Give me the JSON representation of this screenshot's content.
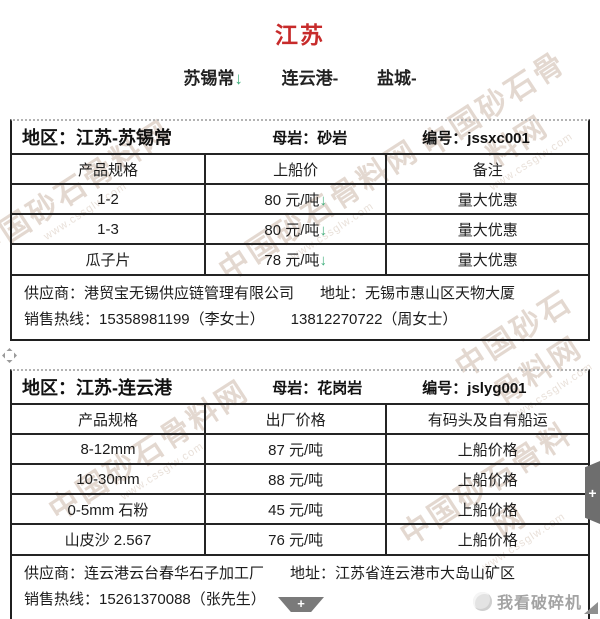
{
  "header": {
    "title": "江苏",
    "cities": [
      {
        "label": "苏锡常",
        "trend": "down"
      },
      {
        "label": "连云港-",
        "trend": "flat"
      },
      {
        "label": "盐城-",
        "trend": "flat"
      }
    ]
  },
  "glyphs": {
    "down_arrow": "↓",
    "plus": "+"
  },
  "colors": {
    "title_red": "#c72b2b",
    "arrow_green": "#3fae7c",
    "border_black": "#242424"
  },
  "tables": [
    {
      "region_label": "地区：江苏-苏锡常",
      "rock_label": "母岩：砂岩",
      "code_label": "编号：jssxc001",
      "columns": [
        "产品规格",
        "上船价",
        "备注"
      ],
      "rows": [
        {
          "spec": "1-2",
          "price": "80 元/吨",
          "trend": "down",
          "note": "量大优惠"
        },
        {
          "spec": "1-3",
          "price": "80 元/吨",
          "trend": "down",
          "note": "量大优惠"
        },
        {
          "spec": "瓜子片",
          "price": "78 元/吨",
          "trend": "down",
          "note": "量大优惠"
        }
      ],
      "supplier": "供应商：港贸宝无锡供应链管理有限公司",
      "address": "地址：无锡市惠山区天物大厦",
      "hotline": "销售热线：15358981199（李女士）",
      "hotline2": "13812270722（周女士）"
    },
    {
      "region_label": "地区：江苏-连云港",
      "rock_label": "母岩：花岗岩",
      "code_label": "编号：jslyg001",
      "columns": [
        "产品规格",
        "出厂价格",
        "有码头及自有船运"
      ],
      "rows": [
        {
          "spec": "8-12mm",
          "price": "87 元/吨",
          "trend": "flat",
          "note": "上船价格"
        },
        {
          "spec": "10-30mm",
          "price": "88 元/吨",
          "trend": "flat",
          "note": "上船价格"
        },
        {
          "spec": "0-5mm 石粉",
          "price": "45 元/吨",
          "trend": "flat",
          "note": "上船价格"
        },
        {
          "spec": "山皮沙 2.567",
          "price": "76 元/吨",
          "trend": "flat",
          "note": "上船价格"
        }
      ],
      "supplier": "供应商：连云港云台春华石子加工厂",
      "address": "地址：江苏省连云港市大岛山矿区",
      "hotline": "销售热线：15261370088（张先生）",
      "hotline2": ""
    }
  ],
  "overlays": {
    "watermark_text": "中国砂石骨料网",
    "watermark_url": "www.cssglw.com",
    "brand_text": "我看破碎机"
  }
}
